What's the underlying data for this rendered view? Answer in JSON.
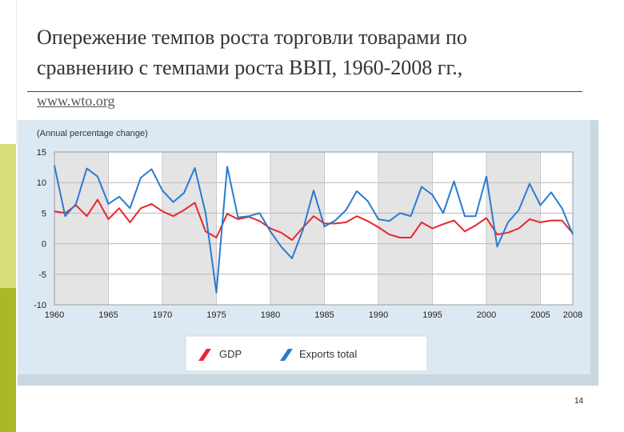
{
  "slide": {
    "title_line1": "Опережение темпов роста торговли товарами по",
    "title_line2": "сравнению с темпами роста ВВП, 1960-2008 гг.,",
    "source": "www.wto.org",
    "page_number": "14"
  },
  "colors": {
    "accent_top": "#d7de79",
    "accent_bottom": "#a9b828",
    "gdp": "#e8262d",
    "exports": "#2a7bd0",
    "band": "#e4e4e4",
    "panel_bg": "#dde9f2"
  },
  "chart_data": {
    "type": "line",
    "title": "",
    "ylabel": "(Annual percentage change)",
    "xlabel": "",
    "ylim": [
      -10,
      15
    ],
    "xlim": [
      1960,
      2008
    ],
    "yticks": [
      "15",
      "10",
      "5",
      "0",
      "-5",
      "-10"
    ],
    "ytick_values": [
      15,
      10,
      5,
      0,
      -5,
      -10
    ],
    "xticks": [
      "1960",
      "1965",
      "1970",
      "1975",
      "1980",
      "1985",
      "1990",
      "1995",
      "2000",
      "2005",
      "2008"
    ],
    "xtick_values": [
      1960,
      1965,
      1970,
      1975,
      1980,
      1985,
      1990,
      1995,
      2000,
      2005,
      2008
    ],
    "grid": true,
    "legend_position": "bottom",
    "x": [
      1960,
      1961,
      1962,
      1963,
      1964,
      1965,
      1966,
      1967,
      1968,
      1969,
      1970,
      1971,
      1972,
      1973,
      1974,
      1975,
      1976,
      1977,
      1978,
      1979,
      1980,
      1981,
      1982,
      1983,
      1984,
      1985,
      1986,
      1987,
      1988,
      1989,
      1990,
      1991,
      1992,
      1993,
      1994,
      1995,
      1996,
      1997,
      1998,
      1999,
      2000,
      2001,
      2002,
      2003,
      2004,
      2005,
      2006,
      2007,
      2008
    ],
    "series": [
      {
        "name": "GDP",
        "values": [
          5.3,
          5.0,
          6.3,
          4.5,
          7.2,
          4.0,
          5.8,
          3.5,
          5.8,
          6.5,
          5.3,
          4.5,
          5.5,
          6.7,
          2.0,
          1.0,
          4.9,
          4.0,
          4.4,
          3.7,
          2.5,
          1.8,
          0.6,
          2.6,
          4.5,
          3.3,
          3.3,
          3.5,
          4.5,
          3.7,
          2.7,
          1.5,
          1.0,
          1.0,
          3.5,
          2.5,
          3.2,
          3.8,
          2.0,
          3.0,
          4.2,
          1.5,
          1.8,
          2.5,
          4.0,
          3.5,
          3.8,
          3.8,
          1.7
        ]
      },
      {
        "name": "Exports total",
        "values": [
          12.8,
          4.5,
          6.5,
          12.3,
          11.0,
          6.5,
          7.7,
          5.8,
          10.8,
          12.2,
          8.7,
          6.8,
          8.3,
          12.4,
          5.0,
          -8.0,
          12.6,
          4.3,
          4.5,
          5.0,
          2.0,
          -0.5,
          -2.4,
          2.2,
          8.7,
          2.8,
          3.8,
          5.5,
          8.6,
          7.0,
          4.0,
          3.7,
          5.0,
          4.5,
          9.3,
          8.0,
          5.0,
          10.2,
          4.5,
          4.5,
          11.0,
          -0.5,
          3.5,
          5.5,
          9.8,
          6.3,
          8.4,
          5.8,
          1.5
        ]
      }
    ]
  }
}
